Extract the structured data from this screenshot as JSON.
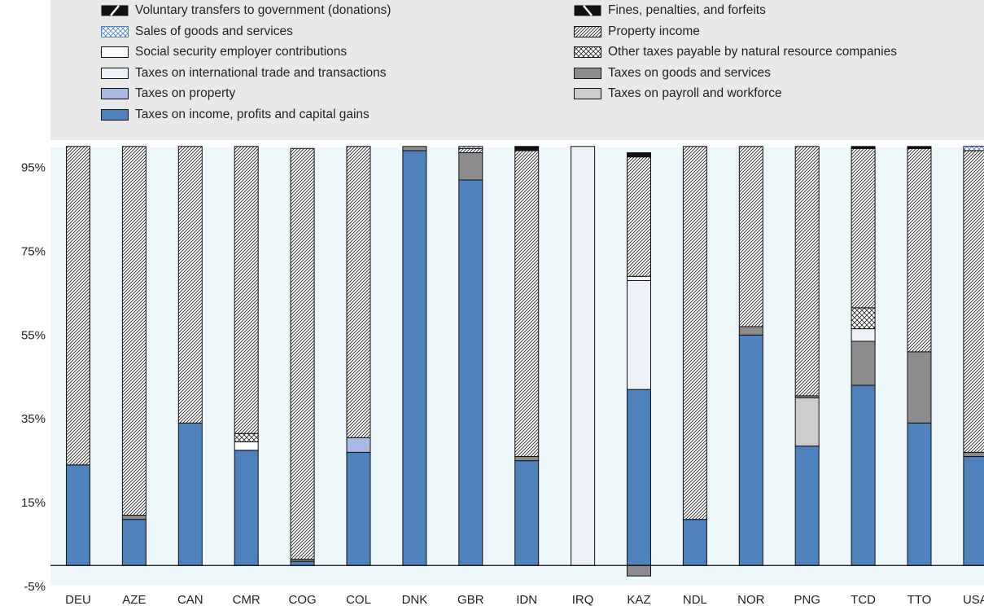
{
  "colors": {
    "plot_bg": "#eef8fb",
    "legend_bg": "#e9e9e9",
    "income": "#4f81bd",
    "property": "#a9b9e3",
    "payroll": "#cccccc",
    "goods_services": "#8c8c8c",
    "intl_trade": "#eef0f8",
    "social_security": "#ffffff",
    "outline": "#111111"
  },
  "legend": [
    {
      "key": "voluntary",
      "label": "Voluntary transfers to government (donations)",
      "pattern": "solid-diag"
    },
    {
      "key": "fines",
      "label": "Fines, penalties, and forfeits",
      "pattern": "solid-anti"
    },
    {
      "key": "sales",
      "label": "Sales of goods and services",
      "pattern": "crosshatch-blue"
    },
    {
      "key": "property_income",
      "label": "Property income",
      "pattern": "hatch"
    },
    {
      "key": "social_security",
      "label": "Social security employer contributions",
      "pattern": "white"
    },
    {
      "key": "other_nr",
      "label": "Other taxes payable by natural resource companies",
      "pattern": "crosshatch"
    },
    {
      "key": "intl_trade",
      "label": "Taxes on international trade and transactions",
      "pattern": "light"
    },
    {
      "key": "goods_services",
      "label": "Taxes on goods and services",
      "pattern": "darkgray"
    },
    {
      "key": "property",
      "label": "Taxes on property",
      "pattern": "lightblue"
    },
    {
      "key": "payroll",
      "label": "Taxes on payroll and workforce",
      "pattern": "lightgray"
    },
    {
      "key": "income",
      "label": "Taxes on income, profits and capital gains",
      "pattern": "blue"
    }
  ],
  "chart_data": {
    "type": "bar",
    "stacked": true,
    "categories": [
      "DEU",
      "AZE",
      "CAN",
      "CMR",
      "COG",
      "COL",
      "DNK",
      "GBR",
      "IDN",
      "IRQ",
      "KAZ",
      "NDL",
      "NOR",
      "PNG",
      "TCD",
      "TTO",
      "USA"
    ],
    "series": [
      {
        "key": "income",
        "name": "Taxes on income, profits and capital gains",
        "values": [
          24,
          11,
          34,
          27.5,
          1,
          27,
          99,
          92,
          25,
          0,
          42,
          11,
          55,
          28.5,
          43,
          34,
          26
        ]
      },
      {
        "key": "property",
        "name": "Taxes on property",
        "values": [
          0,
          0,
          0,
          0,
          0,
          3.5,
          0,
          0,
          0,
          0,
          0,
          0,
          0,
          0,
          0,
          0,
          0
        ]
      },
      {
        "key": "payroll",
        "name": "Taxes on payroll and workforce",
        "values": [
          0,
          0,
          0,
          0,
          0,
          0,
          0,
          0,
          0,
          0,
          0,
          0,
          0,
          11.5,
          0,
          0,
          0
        ]
      },
      {
        "key": "goods_services",
        "name": "Taxes on goods and services",
        "values": [
          0,
          1,
          0,
          0,
          0.5,
          0,
          1,
          6.5,
          1,
          0,
          -2.5,
          0,
          2,
          0.5,
          10.5,
          17,
          1
        ]
      },
      {
        "key": "intl_trade",
        "name": "Taxes on international trade and transactions",
        "values": [
          0,
          0,
          0,
          0,
          0,
          0,
          0,
          0,
          0,
          100,
          26,
          0,
          0,
          0,
          3,
          0,
          0
        ]
      },
      {
        "key": "social_security",
        "name": "Social security employer contributions",
        "values": [
          0,
          0,
          0,
          2,
          0,
          0,
          0,
          0,
          0,
          0,
          1,
          0,
          0,
          0,
          0,
          0,
          0
        ]
      },
      {
        "key": "other_nr",
        "name": "Other taxes payable by natural resource companies",
        "values": [
          0,
          0,
          0,
          2,
          0,
          0,
          0,
          0,
          0,
          0,
          0,
          0,
          0,
          0,
          5,
          0,
          0
        ]
      },
      {
        "key": "property_income",
        "name": "Property income",
        "values": [
          76,
          88,
          66,
          68.5,
          98,
          69.5,
          0,
          1,
          73,
          0,
          28.5,
          89,
          43,
          59.5,
          38,
          48.5,
          72
        ]
      },
      {
        "key": "sales",
        "name": "Sales of goods and services",
        "values": [
          0,
          0,
          0,
          0,
          0,
          0,
          0,
          0.5,
          0,
          0,
          0,
          0,
          0,
          0,
          0,
          0,
          1
        ]
      },
      {
        "key": "fines",
        "name": "Fines, penalties, and forfeits",
        "values": [
          0,
          0,
          0,
          0,
          0,
          0,
          0,
          0,
          1,
          0,
          1,
          0,
          0,
          0,
          0,
          0,
          0
        ]
      },
      {
        "key": "voluntary",
        "name": "Voluntary transfers to government (donations)",
        "values": [
          0,
          0,
          0,
          0,
          0,
          0,
          0,
          0,
          0,
          0,
          0,
          0,
          0,
          0,
          0.5,
          0.5,
          0
        ]
      }
    ],
    "ylim": [
      -5,
      100
    ],
    "yticks": [
      -5,
      15,
      35,
      55,
      75,
      95
    ],
    "ytick_labels": [
      "-5%",
      "15%",
      "35%",
      "55%",
      "75%",
      "95%"
    ],
    "grid": false,
    "legend_position": "top"
  }
}
